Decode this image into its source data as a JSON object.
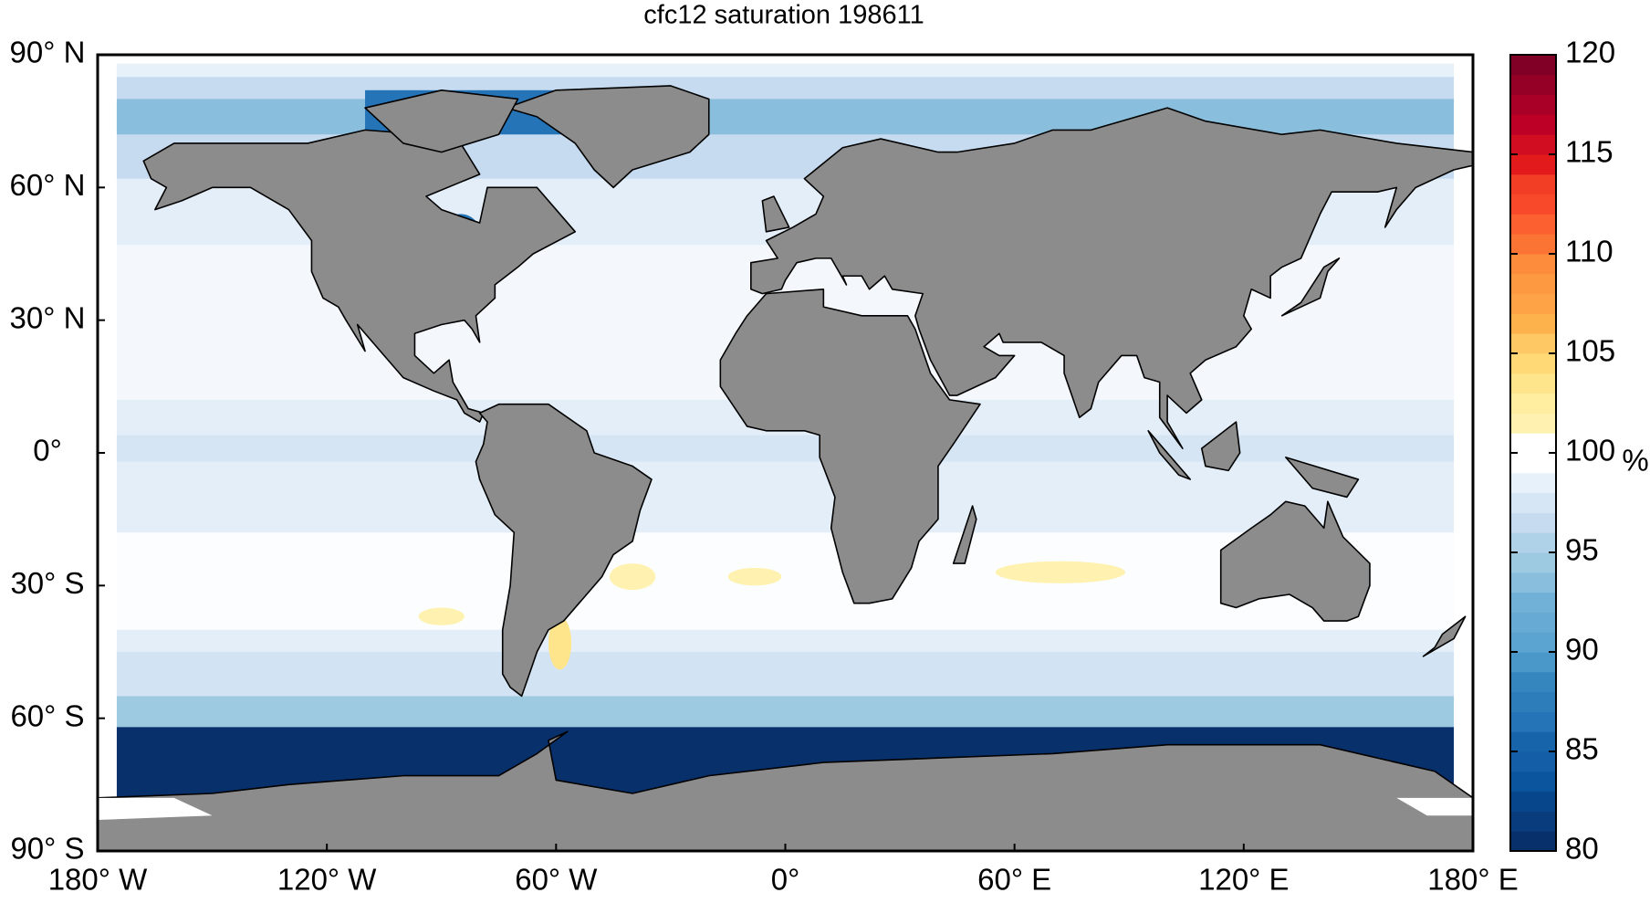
{
  "chart_data": {
    "type": "map",
    "title": "cfc12 saturation 198611",
    "xlim": [
      -180,
      180
    ],
    "ylim": [
      -90,
      90
    ],
    "xticks": [
      {
        "value": -180,
        "label": "180° W"
      },
      {
        "value": -120,
        "label": "120° W"
      },
      {
        "value": -60,
        "label": "60° W"
      },
      {
        "value": 0,
        "label": "0°"
      },
      {
        "value": 60,
        "label": "60° E"
      },
      {
        "value": 120,
        "label": "120° E"
      },
      {
        "value": 180,
        "label": "180° E"
      }
    ],
    "yticks": [
      {
        "value": 90,
        "label": "90° N"
      },
      {
        "value": 60,
        "label": "60° N"
      },
      {
        "value": 30,
        "label": "30° N"
      },
      {
        "value": 0,
        "label": "0°"
      },
      {
        "value": -30,
        "label": "30° S"
      },
      {
        "value": -60,
        "label": "60° S"
      },
      {
        "value": -90,
        "label": "90° S"
      }
    ],
    "colorbar": {
      "label": "%",
      "lim": [
        80,
        120
      ],
      "ticks": [
        80,
        85,
        90,
        95,
        100,
        105,
        110,
        115,
        120
      ],
      "colors": [
        "#08306b",
        "#083c7d",
        "#08468b",
        "#0b559f",
        "#135ea6",
        "#1764ab",
        "#2474b7",
        "#2d7dbb",
        "#3585bf",
        "#4a98c9",
        "#5ba3d0",
        "#67aad3",
        "#71b1d7",
        "#89bedc",
        "#9ecae1",
        "#b0d2e8",
        "#c6dbef",
        "#d6e6f4",
        "#e7f1fa",
        "#ffffff",
        "#ffffff",
        "#fff2b0",
        "#ffeda0",
        "#fee48a",
        "#fed976",
        "#fec965",
        "#feb24c",
        "#fea346",
        "#fd9940",
        "#fd8d3c",
        "#fc7434",
        "#fc6030",
        "#f84a2a",
        "#f33e26",
        "#e31a1c",
        "#d00d21",
        "#bd0026",
        "#a80026",
        "#950026",
        "#800026"
      ]
    }
  }
}
